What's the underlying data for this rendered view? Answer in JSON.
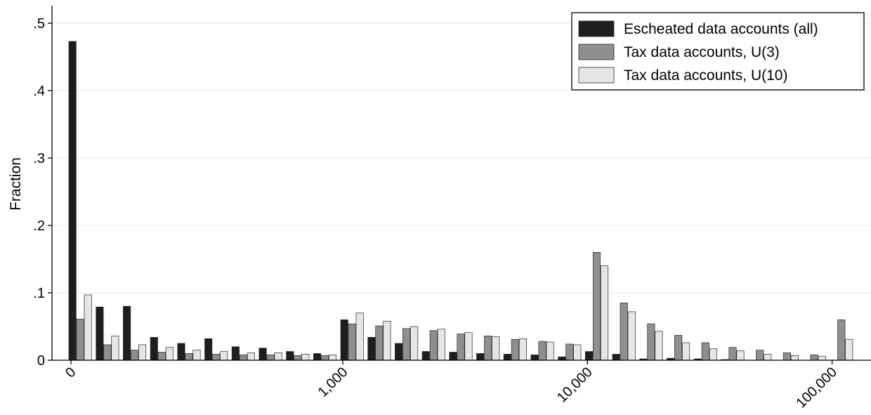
{
  "chart_data": {
    "type": "bar",
    "title": "",
    "xlabel": "",
    "ylabel": "Fraction",
    "ylim": [
      0,
      0.52
    ],
    "grid": true,
    "legend_placement": "top-right",
    "y_ticks": [
      {
        "value": 0,
        "label": "0"
      },
      {
        "value": 0.1,
        "label": ".1"
      },
      {
        "value": 0.2,
        "label": ".2"
      },
      {
        "value": 0.3,
        "label": ".3"
      },
      {
        "value": 0.4,
        "label": ".4"
      },
      {
        "value": 0.5,
        "label": ".5"
      }
    ],
    "x_ticks": [
      {
        "group": 0,
        "label": "0"
      },
      {
        "group": 10,
        "label": "1,000"
      },
      {
        "group": 19,
        "label": "10,000"
      },
      {
        "group": 28,
        "label": "100,000"
      }
    ],
    "categories": [
      "g1",
      "g2",
      "g3",
      "g4",
      "g5",
      "g6",
      "g7",
      "g8",
      "g9",
      "g10",
      "g11",
      "g12",
      "g13",
      "g14",
      "g15",
      "g16",
      "g17",
      "g18",
      "g19",
      "g20",
      "g21",
      "g22",
      "g23",
      "g24",
      "g25",
      "g26",
      "g27",
      "g28",
      "g29"
    ],
    "series": [
      {
        "name": "Escheated data accounts (all)",
        "color": "#1e1e1e",
        "values": [
          0.473,
          0.079,
          0.08,
          0.034,
          0.025,
          0.032,
          0.02,
          0.018,
          0.013,
          0.01,
          0.06,
          0.034,
          0.025,
          0.013,
          0.012,
          0.01,
          0.009,
          0.008,
          0.005,
          0.013,
          0.009,
          0.002,
          0.003,
          0.002,
          0.001,
          0.0,
          0.0,
          0.0,
          0.0
        ]
      },
      {
        "name": "Tax data accounts, U(3)",
        "color": "#8f8f8f",
        "values": [
          0.061,
          0.023,
          0.015,
          0.012,
          0.01,
          0.009,
          0.008,
          0.008,
          0.007,
          0.007,
          0.054,
          0.051,
          0.047,
          0.044,
          0.039,
          0.036,
          0.031,
          0.028,
          0.024,
          0.16,
          0.085,
          0.054,
          0.037,
          0.026,
          0.019,
          0.015,
          0.011,
          0.008,
          0.06
        ]
      },
      {
        "name": "Tax data accounts, U(10)",
        "color": "#e6e6e6",
        "values": [
          0.097,
          0.036,
          0.023,
          0.019,
          0.015,
          0.013,
          0.011,
          0.011,
          0.009,
          0.008,
          0.07,
          0.058,
          0.05,
          0.046,
          0.041,
          0.035,
          0.032,
          0.027,
          0.023,
          0.14,
          0.072,
          0.043,
          0.026,
          0.017,
          0.014,
          0.009,
          0.007,
          0.006,
          0.031
        ]
      }
    ]
  }
}
